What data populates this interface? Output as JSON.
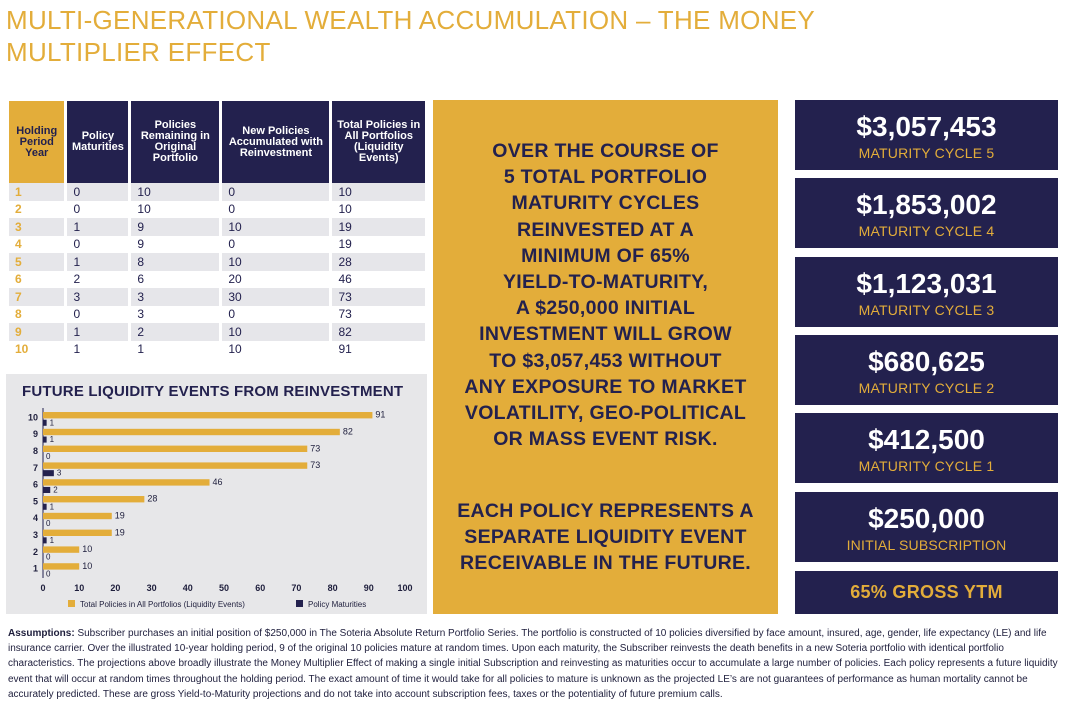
{
  "title": "MULTI-GENERATIONAL WEALTH ACCUMULATION – THE MONEY MULTIPLIER EFFECT",
  "table": {
    "headers": [
      "Holding Period Year",
      "Policy Maturities",
      "Policies Remaining in Original Portfolio",
      "New Policies Accumulated with Reinvestment",
      "Total Policies in All Portfolios (Liquidity Events)"
    ],
    "rows": [
      [
        "1",
        "0",
        "10",
        "0",
        "10"
      ],
      [
        "2",
        "0",
        "10",
        "0",
        "10"
      ],
      [
        "3",
        "1",
        "9",
        "10",
        "19"
      ],
      [
        "4",
        "0",
        "9",
        "0",
        "19"
      ],
      [
        "5",
        "1",
        "8",
        "10",
        "28"
      ],
      [
        "6",
        "2",
        "6",
        "20",
        "46"
      ],
      [
        "7",
        "3",
        "3",
        "30",
        "73"
      ],
      [
        "8",
        "0",
        "3",
        "0",
        "73"
      ],
      [
        "9",
        "1",
        "2",
        "10",
        "82"
      ],
      [
        "10",
        "1",
        "1",
        "10",
        "91"
      ]
    ]
  },
  "chart_data": {
    "type": "bar",
    "orientation": "horizontal",
    "title": "FUTURE LIQUIDITY EVENTS FROM REINVESTMENT",
    "categories": [
      "1",
      "2",
      "3",
      "4",
      "5",
      "6",
      "7",
      "8",
      "9",
      "10"
    ],
    "series": [
      {
        "name": "Total Policies in All Portfolios (Liquidity Events)",
        "color": "#e3ad3a",
        "values": [
          10,
          10,
          19,
          19,
          28,
          46,
          73,
          73,
          82,
          91
        ]
      },
      {
        "name": "Policy Maturities",
        "color": "#23214e",
        "values": [
          0,
          0,
          1,
          0,
          1,
          2,
          3,
          0,
          1,
          1
        ]
      }
    ],
    "xlim": [
      0,
      100
    ],
    "xticks": [
      "0",
      "10",
      "20",
      "30",
      "40",
      "50",
      "60",
      "70",
      "80",
      "90",
      "100"
    ],
    "legend_position": "bottom",
    "grid": false
  },
  "center": {
    "lines1": [
      "OVER THE COURSE OF",
      "5 TOTAL PORTFOLIO",
      "MATURITY CYCLES",
      "REINVESTED AT A",
      "MINIMUM OF 65%",
      "YIELD-TO-MATURITY,",
      "A $250,000 INITIAL",
      "INVESTMENT WILL GROW",
      "TO $3,057,453 WITHOUT",
      "ANY EXPOSURE TO MARKET",
      "VOLATILITY, GEO-POLITICAL",
      "OR MASS EVENT RISK."
    ],
    "lines2": [
      "EACH POLICY REPRESENTS A",
      "SEPARATE LIQUIDITY EVENT",
      "RECEIVABLE IN THE FUTURE."
    ]
  },
  "cycles": [
    {
      "amount": "$3,057,453",
      "label": "MATURITY CYCLE 5"
    },
    {
      "amount": "$1,853,002",
      "label": "MATURITY CYCLE 4"
    },
    {
      "amount": "$1,123,031",
      "label": "MATURITY CYCLE 3"
    },
    {
      "amount": "$680,625",
      "label": "MATURITY CYCLE 2"
    },
    {
      "amount": "$412,500",
      "label": "MATURITY CYCLE 1"
    },
    {
      "amount": "$250,000",
      "label": "INITIAL SUBSCRIPTION"
    }
  ],
  "ytm": "65% GROSS YTM",
  "assumptions": {
    "label": "Assumptions:",
    "text": " Subscriber purchases an initial position of $250,000 in The Soteria Absolute Return Portfolio Series. The portfolio is constructed of 10 policies diversified by face amount, insured, age, gender, life expectancy (LE) and life insurance carrier. Over the illustrated 10-year holding period, 9 of the original 10 policies mature at random times. Upon each maturity, the Subscriber reinvests the death benefits in a new Soteria portfolio with identical portfolio characteristics. The projections above broadly illustrate the Money Multiplier Effect of making a single initial Subscription and reinvesting as maturities occur to accumulate a large number of policies. Each policy represents a future liquidity event that will occur at random times throughout the holding period. The exact amount of time it would take for all policies to mature is unknown as the projected LE’s are not guarantees of performance as human mortality cannot be accurately predicted. These are gross Yield-to-Maturity projections and do not take into account subscription fees, taxes or the potentiality of future premium calls."
  }
}
